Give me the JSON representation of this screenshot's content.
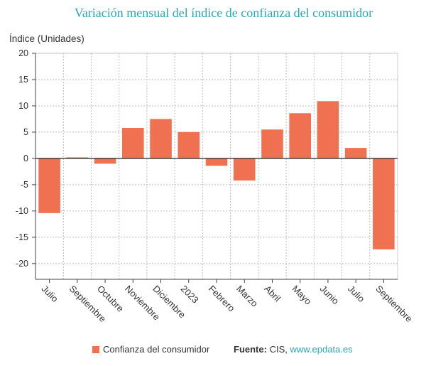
{
  "title": "Variación mensual del índice de confianza del consumidor",
  "legend": {
    "label": "Confianza del consumidor",
    "color": "#f07152"
  },
  "source": {
    "label": "Fuente:",
    "text": "CIS,",
    "link": "www.epdata.es"
  },
  "chart_data": {
    "type": "bar",
    "ylabel": "Índice (Unidades)",
    "xlabel": "",
    "ylim": [
      -23,
      20
    ],
    "yticks": [
      20,
      15,
      10,
      5,
      0,
      -5,
      -10,
      -15,
      -20
    ],
    "grid": true,
    "legend_position": "bottom",
    "categories": [
      "Julio",
      "Septiembre",
      "Octubre",
      "Noviembre",
      "Diciembre",
      "2023",
      "Febrero",
      "Marzo",
      "Abril",
      "Mayo",
      "Junio",
      "Julio",
      "Septiembre"
    ],
    "series": [
      {
        "name": "Confianza del consumidor",
        "color": "#f07152",
        "values": [
          -10.4,
          0.2,
          -1.0,
          5.8,
          7.5,
          5.0,
          -1.4,
          -4.2,
          5.5,
          8.6,
          10.9,
          2.0,
          -17.3
        ]
      }
    ]
  }
}
